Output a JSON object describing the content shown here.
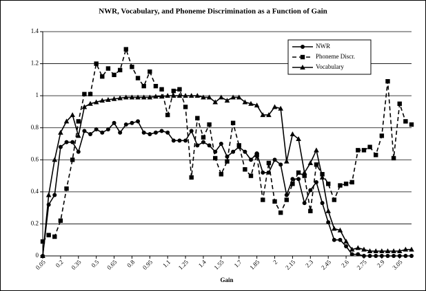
{
  "chart_data": {
    "type": "line",
    "title": "NWR, Vocabulary, and Phoneme Discrimination as a Function of Gain",
    "x_label": "Gain",
    "categories": [
      "0.05",
      null,
      null,
      "0.2",
      null,
      null,
      "0.35",
      null,
      null,
      "0.5",
      null,
      null,
      "0.65",
      null,
      null,
      "0.8",
      null,
      null,
      "0.95",
      null,
      null,
      "1.1",
      null,
      null,
      "1.25",
      null,
      null,
      "1.4",
      null,
      null,
      "1.55",
      null,
      null,
      "1.7",
      null,
      null,
      "1.85",
      null,
      null,
      "2",
      null,
      null,
      "2.15",
      null,
      null,
      "2.3",
      null,
      null,
      "2.45",
      null,
      null,
      "2.6",
      null,
      null,
      "2.75",
      null,
      null,
      "2.9",
      null,
      null,
      "3.05",
      null,
      null
    ],
    "ylim": [
      0,
      1.4
    ],
    "yticks": [
      0,
      0.2,
      0.4,
      0.6,
      0.8,
      1,
      1.2,
      1.4
    ],
    "grid": true,
    "legend": "upper right",
    "series": [
      {
        "name": "NWR",
        "color": "#000000",
        "marker": "circle",
        "dash": false,
        "values": [
          0,
          0.32,
          0.38,
          0.68,
          0.71,
          0.71,
          0.65,
          0.78,
          0.76,
          0.79,
          0.77,
          0.79,
          0.83,
          0.77,
          0.82,
          0.83,
          0.84,
          0.77,
          0.76,
          0.77,
          0.78,
          0.77,
          0.72,
          0.72,
          0.72,
          0.78,
          0.69,
          0.71,
          0.69,
          0.65,
          0.7,
          0.62,
          0.65,
          0.68,
          0.65,
          0.6,
          0.64,
          0.52,
          0.52,
          0.6,
          0.57,
          0.38,
          0.48,
          0.48,
          0.33,
          0.41,
          0.46,
          0.33,
          0.21,
          0.1,
          0.1,
          0.06,
          0.01,
          0.01,
          0,
          0,
          0,
          0,
          0,
          0,
          0,
          0,
          0
        ]
      },
      {
        "name": "Phoneme Discr.",
        "color": "#000000",
        "marker": "square",
        "dash": true,
        "values": [
          0.09,
          0.13,
          0.12,
          0.22,
          0.42,
          0.6,
          0.84,
          1.01,
          1.01,
          1.2,
          1.12,
          1.17,
          1.13,
          1.16,
          1.29,
          1.18,
          1.11,
          1.06,
          1.15,
          1.06,
          1.04,
          0.88,
          1.03,
          1.04,
          0.93,
          0.49,
          0.86,
          0.74,
          0.82,
          0.61,
          0.51,
          0.59,
          0.83,
          0.69,
          0.54,
          0.5,
          0.63,
          0.35,
          0.58,
          0.34,
          0.27,
          0.35,
          0.45,
          0.52,
          0.5,
          0.28,
          0.57,
          0.51,
          0.45,
          0.35,
          0.44,
          0.45,
          0.46,
          0.66,
          0.66,
          0.68,
          0.63,
          0.75,
          1.09,
          0.61,
          0.95,
          0.84,
          0.82
        ]
      },
      {
        "name": "Vocabulary",
        "color": "#000000",
        "marker": "triangle",
        "dash": false,
        "values": [
          0,
          0.38,
          0.6,
          0.77,
          0.84,
          0.88,
          0.75,
          0.93,
          0.95,
          0.96,
          0.97,
          0.975,
          0.98,
          0.985,
          0.99,
          0.99,
          0.99,
          0.99,
          0.99,
          0.995,
          0.995,
          1,
          1,
          1,
          1,
          1,
          1,
          0.99,
          0.99,
          0.96,
          0.99,
          0.97,
          0.99,
          0.99,
          0.96,
          0.95,
          0.94,
          0.88,
          0.88,
          0.93,
          0.92,
          0.59,
          0.76,
          0.73,
          0.52,
          0.58,
          0.66,
          0.49,
          0.28,
          0.17,
          0.16,
          0.09,
          0.04,
          0.05,
          0.04,
          0.03,
          0.03,
          0.03,
          0.03,
          0.03,
          0.03,
          0.04,
          0.04
        ]
      }
    ]
  }
}
